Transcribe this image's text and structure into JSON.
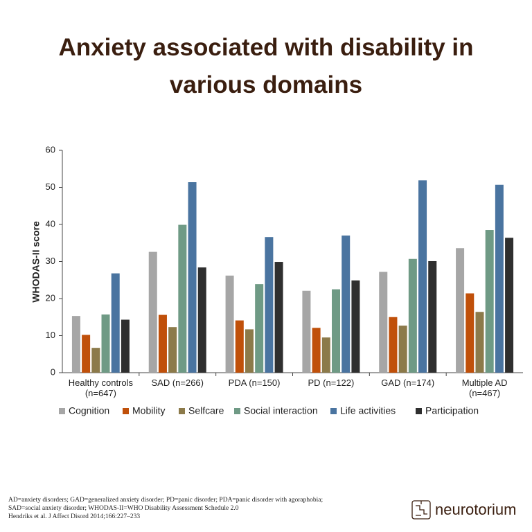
{
  "chart_data": {
    "type": "bar",
    "title": "Anxiety associated with disability in various domains",
    "y_label": "WHODAS-II score",
    "categories": [
      "Healthy controls\n(n=647)",
      "SAD (n=266)",
      "PDA (n=150)",
      "PD (n=122)",
      "GAD (n=174)",
      "Multiple AD\n(n=467)"
    ],
    "series": [
      {
        "name": "Cognition",
        "color": "#a6a6a6",
        "values": [
          15.3,
          32.6,
          26.2,
          22.1,
          27.2,
          33.6
        ]
      },
      {
        "name": "Mobility",
        "color": "#c0500a",
        "values": [
          10.2,
          15.6,
          14.1,
          12.1,
          15.0,
          21.4
        ]
      },
      {
        "name": "Selfcare",
        "color": "#8c7a4a",
        "values": [
          6.7,
          12.3,
          11.7,
          9.5,
          12.7,
          16.4
        ]
      },
      {
        "name": "Social interaction",
        "color": "#6f9a85",
        "values": [
          15.7,
          39.9,
          23.9,
          22.5,
          30.7,
          38.5
        ]
      },
      {
        "name": "Life activities",
        "color": "#4a74a0",
        "values": [
          26.8,
          51.4,
          36.6,
          37.0,
          51.9,
          50.7
        ]
      },
      {
        "name": "Participation",
        "color": "#2f2f2f",
        "values": [
          14.3,
          28.4,
          29.9,
          24.9,
          30.1,
          36.4
        ]
      }
    ],
    "ylim": [
      0,
      60
    ],
    "yticks": [
      0,
      10,
      20,
      30,
      40,
      50,
      60
    ],
    "grid": false,
    "legend": "bottom"
  },
  "footnotes": [
    "AD=anxiety disorders; GAD=generalized anxiety disorder; PD=panic disorder; PDA=panic disorder with agoraphobia;",
    "SAD=social anxiety disorder; WHODAS-II=WHO Disability Assessment Schedule 2.0",
    "Hendriks et al. J Affect Disord 2014;166:227–233"
  ],
  "brand": "neurotorium"
}
